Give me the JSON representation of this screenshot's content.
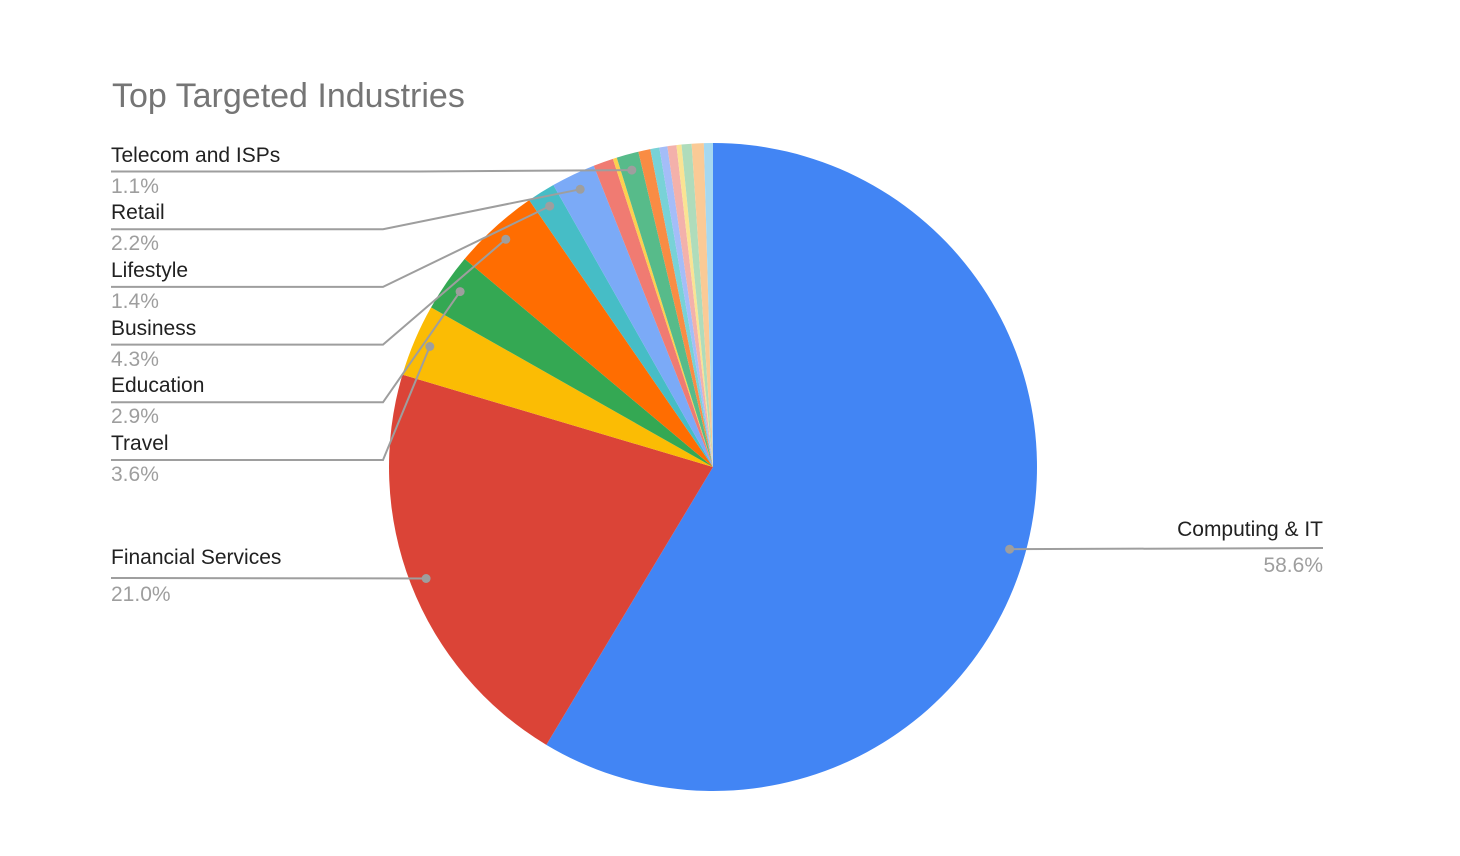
{
  "title": {
    "text": "Top Targeted Industries",
    "color": "#757575"
  },
  "chart_data": {
    "type": "pie",
    "title": "Top Targeted Industries",
    "start_angle_deg": 0,
    "direction": "clockwise",
    "legend_position": "none (callout labels with leader lines)",
    "background": "#ffffff",
    "slices": [
      {
        "label": "Computing & IT",
        "value": 58.6,
        "color": "#4285F4",
        "labeled": true
      },
      {
        "label": "Financial Services",
        "value": 21.0,
        "color": "#DB4437",
        "labeled": true
      },
      {
        "label": "Travel",
        "value": 3.6,
        "color": "#FBBC04",
        "labeled": true
      },
      {
        "label": "Education",
        "value": 2.9,
        "color": "#34A853",
        "labeled": true
      },
      {
        "label": "Business",
        "value": 4.3,
        "color": "#FF6D01",
        "labeled": true
      },
      {
        "label": "Lifestyle",
        "value": 1.4,
        "color": "#46BDC6",
        "labeled": true
      },
      {
        "label": "Retail",
        "value": 2.2,
        "color": "#7BAAF7",
        "labeled": true
      },
      {
        "label": "",
        "value": 1.0,
        "color": "#F07B72",
        "labeled": false,
        "estimated": true
      },
      {
        "label": "",
        "value": 0.2,
        "color": "#FCD04F",
        "labeled": false,
        "estimated": true
      },
      {
        "label": "Telecom and ISPs",
        "value": 1.1,
        "color": "#57BB8A",
        "labeled": true
      },
      {
        "label": "",
        "value": 0.6,
        "color": "#F98C44",
        "labeled": false,
        "estimated": true
      },
      {
        "label": "",
        "value": 0.45,
        "color": "#78D2D7",
        "labeled": false,
        "estimated": true
      },
      {
        "label": "",
        "value": 0.4,
        "color": "#A4BDF8",
        "labeled": false,
        "estimated": true
      },
      {
        "label": "",
        "value": 0.45,
        "color": "#F3B1AB",
        "labeled": false,
        "estimated": true
      },
      {
        "label": "",
        "value": 0.25,
        "color": "#FAE393",
        "labeled": false,
        "estimated": true
      },
      {
        "label": "",
        "value": 0.5,
        "color": "#AFDCBB",
        "labeled": false,
        "estimated": true
      },
      {
        "label": "",
        "value": 0.6,
        "color": "#FACA96",
        "labeled": false,
        "estimated": true
      },
      {
        "label": "",
        "value": 0.45,
        "color": "#A5D8F0",
        "labeled": false,
        "estimated": true
      }
    ],
    "callouts": {
      "left_column": [
        {
          "slice_index": 9,
          "label": "Telecom and ISPs",
          "pct_text": "1.1%"
        },
        {
          "slice_index": 6,
          "label": "Retail",
          "pct_text": "2.2%"
        },
        {
          "slice_index": 5,
          "label": "Lifestyle",
          "pct_text": "1.4%"
        },
        {
          "slice_index": 4,
          "label": "Business",
          "pct_text": "4.3%"
        },
        {
          "slice_index": 3,
          "label": "Education",
          "pct_text": "2.9%"
        },
        {
          "slice_index": 2,
          "label": "Travel",
          "pct_text": "3.6%"
        }
      ],
      "financial": {
        "slice_index": 1,
        "label": "Financial Services",
        "pct_text": "21.0%"
      },
      "computing": {
        "slice_index": 0,
        "label": "Computing & IT",
        "pct_text": "58.6%"
      }
    },
    "style": {
      "line_color": "#9E9E9E",
      "dot_color": "#9E9E9E",
      "label_color": "#212121",
      "pct_color": "#9E9E9E",
      "title_color": "#757575"
    }
  }
}
